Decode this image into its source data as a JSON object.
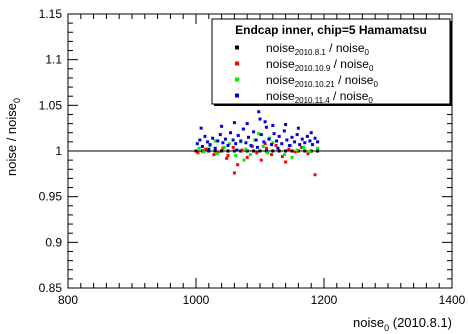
{
  "chart_data": {
    "type": "scatter",
    "legend_title": "Endcap inner, chip=5 Hamamatsu",
    "xlabel": {
      "main": "noise",
      "sub": "0",
      "rest": " (2010.8.1)"
    },
    "ylabel": {
      "main": "noise / noise",
      "sub": "0"
    },
    "xlim": [
      800,
      1400
    ],
    "ylim": [
      0.85,
      1.15
    ],
    "x_ticks": [
      "800",
      "1000",
      "1200",
      "1400"
    ],
    "y_ticks": [
      "0.85",
      "0.9",
      "0.95",
      "1",
      "1.05",
      "1.1",
      "1.15"
    ],
    "reference_line": 1,
    "legend_position": "top-right",
    "series": [
      {
        "name": "noise_2010.8.1 / noise_0",
        "label": {
          "main": "noise",
          "sub": "2010.8.1",
          "rest": " / noise",
          "sub2": "0"
        },
        "color": "#000000",
        "points": [
          [
            1000,
            1.0
          ],
          [
            1010,
            1.0
          ],
          [
            1020,
            1.0
          ],
          [
            1030,
            1.0
          ],
          [
            1040,
            1.0
          ],
          [
            1050,
            1.0
          ],
          [
            1060,
            1.0
          ],
          [
            1070,
            1.0
          ],
          [
            1080,
            1.0
          ],
          [
            1090,
            1.0
          ],
          [
            1100,
            1.0
          ],
          [
            1110,
            1.0
          ],
          [
            1120,
            1.0
          ],
          [
            1130,
            1.0
          ],
          [
            1140,
            1.0
          ],
          [
            1150,
            1.0
          ],
          [
            1160,
            1.0
          ],
          [
            1170,
            1.0
          ],
          [
            1180,
            1.0
          ],
          [
            1190,
            1.0
          ]
        ]
      },
      {
        "name": "noise_2010.10.9 / noise_0",
        "label": {
          "main": "noise",
          "sub": "2010.10.9",
          "rest": " / noise",
          "sub2": "0"
        },
        "color": "#ff0000",
        "points": [
          [
            1003,
            0.998
          ],
          [
            1015,
            1.002
          ],
          [
            1028,
            0.996
          ],
          [
            1035,
            0.999
          ],
          [
            1042,
            1.003
          ],
          [
            1050,
            0.995
          ],
          [
            1058,
            1.004
          ],
          [
            1065,
            0.985
          ],
          [
            1072,
            1.001
          ],
          [
            1080,
            0.993
          ],
          [
            1088,
            1.005
          ],
          [
            1095,
            0.998
          ],
          [
            1102,
            0.99
          ],
          [
            1110,
            1.003
          ],
          [
            1118,
            0.996
          ],
          [
            1125,
            1.006
          ],
          [
            1135,
            0.994
          ],
          [
            1145,
            1.002
          ],
          [
            1155,
            0.999
          ],
          [
            1165,
            1.004
          ],
          [
            1175,
            0.997
          ],
          [
            1186,
            0.974
          ],
          [
            1048,
            0.992
          ],
          [
            1108,
            1.008
          ],
          [
            1060,
            0.976
          ],
          [
            1140,
            0.988
          ]
        ]
      },
      {
        "name": "noise_2010.10.21 / noise_0",
        "label": {
          "main": "noise",
          "sub": "2010.10.21",
          "rest": " / noise",
          "sub2": "0"
        },
        "color": "#00ee00",
        "points": [
          [
            1005,
            1.003
          ],
          [
            1012,
            0.999
          ],
          [
            1022,
            1.006
          ],
          [
            1033,
            0.997
          ],
          [
            1044,
            1.004
          ],
          [
            1052,
            1.008
          ],
          [
            1062,
            0.995
          ],
          [
            1070,
            1.01
          ],
          [
            1078,
            1.002
          ],
          [
            1085,
            0.996
          ],
          [
            1092,
            1.012
          ],
          [
            1098,
            1.019
          ],
          [
            1105,
            1.005
          ],
          [
            1112,
            0.998
          ],
          [
            1120,
            1.009
          ],
          [
            1128,
            1.003
          ],
          [
            1138,
            0.996
          ],
          [
            1148,
            1.006
          ],
          [
            1158,
            1.001
          ],
          [
            1168,
            1.004
          ],
          [
            1178,
            0.999
          ],
          [
            1190,
            1.003
          ],
          [
            1030,
            1.011
          ],
          [
            1075,
            0.99
          ],
          [
            1115,
            1.014
          ],
          [
            1150,
            0.993
          ]
        ]
      },
      {
        "name": "noise_2010.11.4 / noise_0",
        "label": {
          "main": "noise",
          "sub": "2010.11.4",
          "rest": " / noise",
          "sub2": "0"
        },
        "color": "#0000dd",
        "points": [
          [
            1002,
            1.008
          ],
          [
            1006,
            1.012
          ],
          [
            1010,
            1.005
          ],
          [
            1014,
            1.016
          ],
          [
            1018,
            1.01
          ],
          [
            1022,
            1.007
          ],
          [
            1026,
            1.014
          ],
          [
            1030,
            1.003
          ],
          [
            1034,
            1.011
          ],
          [
            1038,
            1.018
          ],
          [
            1042,
            1.009
          ],
          [
            1046,
            1.013
          ],
          [
            1050,
            1.006
          ],
          [
            1054,
            1.02
          ],
          [
            1058,
            1.012
          ],
          [
            1062,
            1.008
          ],
          [
            1066,
            1.017
          ],
          [
            1070,
            1.011
          ],
          [
            1074,
            1.024
          ],
          [
            1078,
            1.009
          ],
          [
            1082,
            1.015
          ],
          [
            1086,
            1.006
          ],
          [
            1090,
            1.021
          ],
          [
            1094,
            1.012
          ],
          [
            1098,
            1.043
          ],
          [
            1102,
            1.018
          ],
          [
            1106,
            1.01
          ],
          [
            1110,
            1.026
          ],
          [
            1114,
            1.013
          ],
          [
            1118,
            1.007
          ],
          [
            1122,
            1.019
          ],
          [
            1126,
            1.011
          ],
          [
            1130,
            1.016
          ],
          [
            1134,
            1.008
          ],
          [
            1138,
            1.022
          ],
          [
            1142,
            1.012
          ],
          [
            1146,
            1.006
          ],
          [
            1150,
            1.015
          ],
          [
            1154,
            1.01
          ],
          [
            1158,
            1.018
          ],
          [
            1162,
            1.007
          ],
          [
            1166,
            1.013
          ],
          [
            1170,
            1.009
          ],
          [
            1174,
            1.016
          ],
          [
            1178,
            1.011
          ],
          [
            1182,
            1.007
          ],
          [
            1186,
            1.014
          ],
          [
            1190,
            1.01
          ],
          [
            1008,
            1.025
          ],
          [
            1020,
            1.002
          ],
          [
            1040,
            1.027
          ],
          [
            1060,
            1.031
          ],
          [
            1080,
            1.03
          ],
          [
            1100,
            1.035
          ],
          [
            1120,
            1.028
          ],
          [
            1140,
            1.029
          ],
          [
            1160,
            1.025
          ],
          [
            1180,
            1.02
          ],
          [
            1096,
            1.004
          ],
          [
            1108,
            1.032
          ],
          [
            1064,
            1.001
          ],
          [
            1128,
            1.003
          ]
        ]
      }
    ]
  }
}
